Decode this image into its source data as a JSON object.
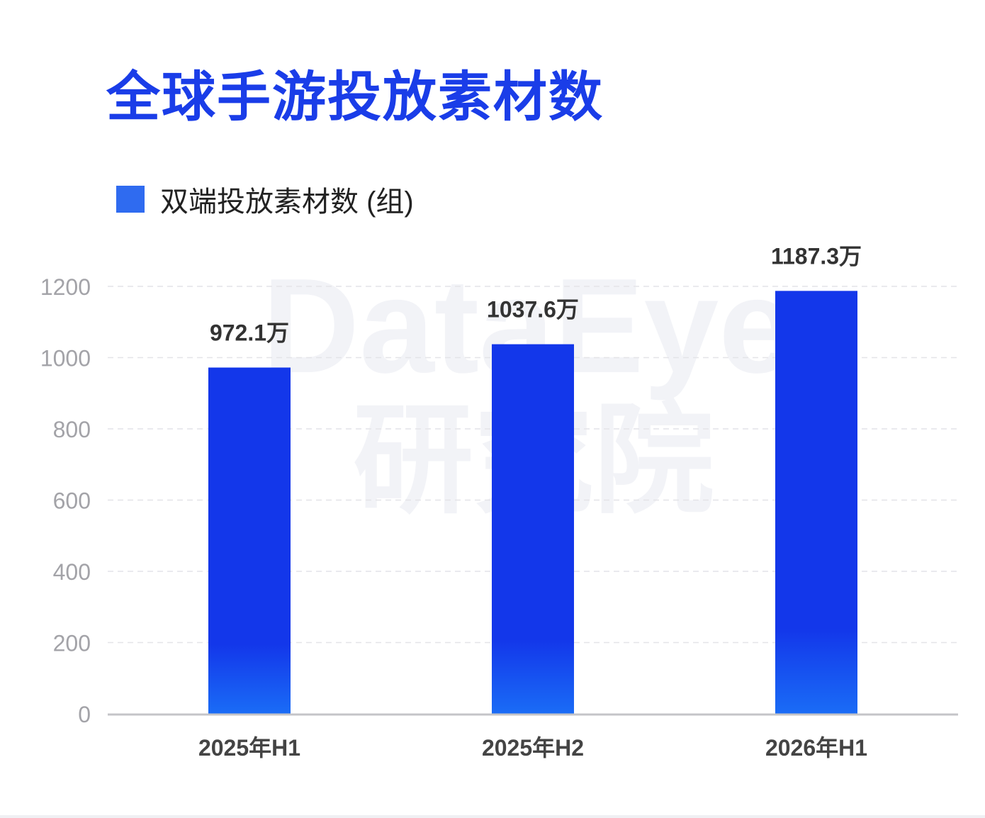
{
  "title": "全球手游投放素材数",
  "watermark": {
    "line1": "DataEye",
    "line2": "研究院"
  },
  "colors": {
    "title": "#1a3de8",
    "bar_top": "#1337ea",
    "bar_bottom": "#1a6cf6",
    "legend": "#2f6bf0",
    "grid": "#e4e4e8"
  },
  "chart_data": {
    "type": "bar",
    "title": "全球手游投放素材数",
    "categories": [
      "2025年H1",
      "2025年H2",
      "2026年H1"
    ],
    "series": [
      {
        "name": "双端投放素材数 (组)",
        "values": [
          972.1,
          1037.6,
          1187.3
        ]
      }
    ],
    "data_labels": [
      "972.1万",
      "1037.6万",
      "1187.3万"
    ],
    "xlabel": "",
    "ylabel": "",
    "ylim": [
      0,
      1200
    ],
    "yticks": [
      0,
      200,
      400,
      600,
      800,
      1000,
      1200
    ],
    "grid": true,
    "legend_position": "top-left"
  }
}
